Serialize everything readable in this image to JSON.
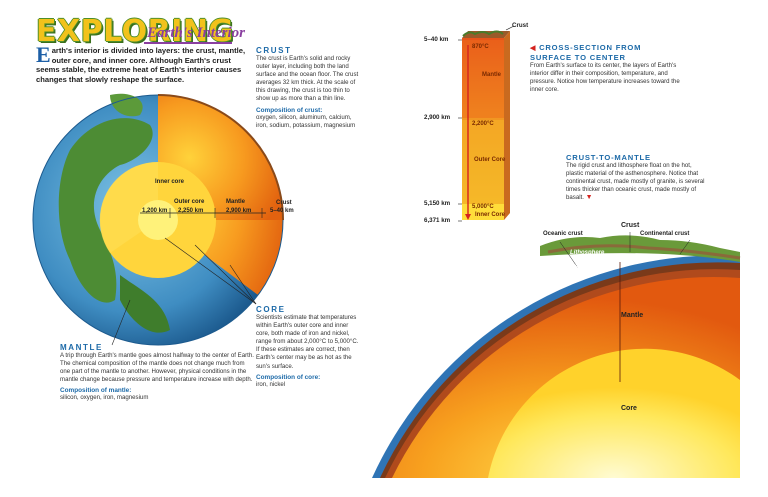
{
  "title": {
    "main": "EXPLORING",
    "sub": "Earth's Interior"
  },
  "intro": {
    "drop_cap": "E",
    "text": "arth's interior is divided into layers: the crust, mantle, outer core, and inner core. Although Earth's crust seems stable, the extreme heat of Earth's interior causes changes that slowly reshape the surface."
  },
  "crust": {
    "heading": "CRUST",
    "body": "The crust is Earth's solid and rocky outer layer, including both the land surface and the ocean floor. The crust averages 32 km thick. At the scale of this drawing, the crust is too thin to show up as more than a thin line.",
    "comp_heading": "Composition of crust:",
    "comp_body": "oxygen, silicon, aluminum, calcium, iron, sodium, potassium, magnesium"
  },
  "core": {
    "heading": "CORE",
    "body": "Scientists estimate that temperatures within Earth's outer core and inner core, both made of iron and nickel, range from about 2,000°C to 5,000°C. If these estimates are correct, then Earth's center may be as hot as the sun's surface.",
    "comp_heading": "Composition of core:",
    "comp_body": "iron, nickel"
  },
  "mantle": {
    "heading": "MANTLE",
    "body": "A trip through Earth's mantle goes almost halfway to the center of Earth. The chemical composition of the mantle does not change much from one part of the mantle to another. However, physical conditions in the mantle change because pressure and temperature increase with depth.",
    "comp_heading": "Composition of mantle:",
    "comp_body": "silicon, oxygen, iron, magnesium"
  },
  "globe_labels": {
    "inner_core": "Inner core",
    "outer_core": "Outer core",
    "mantle": "Mantle",
    "crust": "Crust",
    "inner_km": "1,200 km",
    "outer_km": "2,250 km",
    "mantle_km": "2,900 km",
    "crust_km": "5–40 km"
  },
  "cross_section": {
    "heading_line1": "CROSS-SECTION FROM",
    "heading_line2": "SURFACE TO CENTER",
    "body": "From Earth's surface to its center, the layers of Earth's interior differ in their composition, temperature, and pressure. Notice how temperature increases toward the inner core.",
    "crust_label": "Crust",
    "depth_1": "5–40 km",
    "depth_2": "2,900 km",
    "depth_3": "5,150 km",
    "depth_4": "6,371 km",
    "temp_1": "870°C",
    "temp_2": "2,200°C",
    "temp_3": "5,000°C",
    "layer_mantle": "Mantle",
    "layer_outer": "Outer Core",
    "layer_inner": "Inner Core"
  },
  "crust_to_mantle": {
    "heading": "CRUST-TO-MANTLE",
    "body": "The rigid crust and lithosphere float on the hot, plastic material of the asthenosphere. Notice that continental crust, made mostly of granite, is several times thicker than oceanic crust, made mostly of basalt."
  },
  "slice_labels": {
    "crust": "Crust",
    "oceanic_crust": "Oceanic crust",
    "continental_crust": "Continental crust",
    "lithosphere": "Lithosphere",
    "asthenosphere": "Asthenosphere",
    "mantle": "Mantle",
    "core": "Core"
  }
}
